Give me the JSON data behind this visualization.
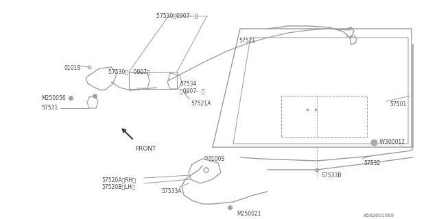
{
  "bg_color": "#ffffff",
  "line_color": "#999999",
  "text_color": "#444444",
  "diagram_id": "A562001069",
  "labels": {
    "57530_top": "57530を0907-  〉",
    "57530_inner": "57530〈  -0907〉",
    "57534": "57534\nを0907-  〉",
    "57521": "57521",
    "57521A": "57521A",
    "57501": "57501",
    "57531": "57531",
    "57520A": "57520A〈RH〉",
    "57520B": "57520B〈LH〉",
    "57533A": "57533A",
    "57533B": "57533B",
    "57532": "57532",
    "M250056": "M250056",
    "M250021": "M250021",
    "W300012": "W300012",
    "0101S": "0101S",
    "0100S": "0100S",
    "FRONT": "FRONT"
  }
}
